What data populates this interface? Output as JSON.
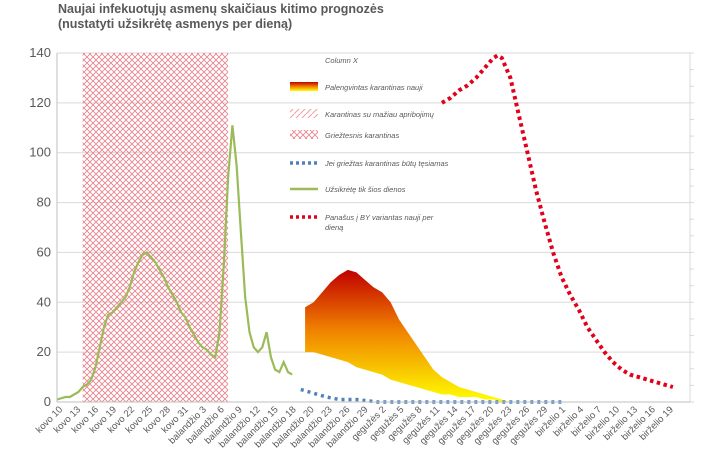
{
  "title_line1": "Naujai infekuotųjų asmenų skaičiaus kitimo prognozės",
  "title_line2": "(nustatyti užsikrėtę asmenys per dieną)",
  "chart_data": {
    "type": "line",
    "title": "Naujai infekuotųjų asmenų skaičiaus kitimo prognozės (nustatyti užsikrėtę asmenys per dieną)",
    "ylim": [
      0,
      140
    ],
    "yticks": [
      0,
      20,
      40,
      60,
      80,
      100,
      120,
      140
    ],
    "grid": true,
    "x_labels": [
      "kovo 10",
      "kovo 13",
      "kovo 16",
      "kovo 19",
      "kovo 22",
      "kovo 25",
      "kovo 28",
      "kovo 31",
      "balandžio 3",
      "balandžio 6",
      "balandžio 9",
      "balandžio 12",
      "balandžio 15",
      "balandžio 18",
      "balandžio 20",
      "balandžio 23",
      "balandžio 26",
      "balandžio 29",
      "gegužės 2",
      "gegužės 5",
      "gegužės 8",
      "gegužės 11",
      "gegužės 14",
      "gegužės 17",
      "gegužės 20",
      "gegužės 23",
      "gegužės 26",
      "gegužės 29",
      "birželio 1",
      "birželio 4",
      "birželio 7",
      "birželio 10",
      "birželio 13",
      "birželio 16",
      "birželio 19"
    ],
    "legend_placement": "inside-top",
    "legend": [
      {
        "label": "Column X",
        "kind": "none"
      },
      {
        "label": "Palengvintas karantinas nauji",
        "kind": "gradient"
      },
      {
        "label": "Karantinas su mažiau apribojimų",
        "kind": "hatch-light"
      },
      {
        "label": "Griežtesnis karantinas",
        "kind": "hatch-red"
      },
      {
        "label": "Jei griežtas karantinas būtų tęsiamas",
        "kind": "dotted-blue"
      },
      {
        "label": "Užsikrėtę tik šios dienos",
        "kind": "line-green"
      },
      {
        "label": "Panašus į BY variantas nauji per dieną",
        "kind": "dotted-red"
      }
    ],
    "strict_quarantine_range": {
      "x_start": 6,
      "x_end": 40
    },
    "series": [
      {
        "name": "Užsikrėtę tik šios dienos",
        "color": "#9bbb59",
        "points": [
          [
            0,
            1
          ],
          [
            2,
            2
          ],
          [
            3,
            2
          ],
          [
            4,
            3
          ],
          [
            5,
            4
          ],
          [
            6,
            6
          ],
          [
            7,
            7
          ],
          [
            8,
            9
          ],
          [
            9,
            14
          ],
          [
            10,
            22
          ],
          [
            11,
            30
          ],
          [
            12,
            35
          ],
          [
            13,
            36
          ],
          [
            14,
            38
          ],
          [
            15,
            40
          ],
          [
            16,
            42
          ],
          [
            17,
            46
          ],
          [
            18,
            52
          ],
          [
            19,
            56
          ],
          [
            20,
            59
          ],
          [
            21,
            60
          ],
          [
            22,
            58
          ],
          [
            23,
            56
          ],
          [
            24,
            53
          ],
          [
            25,
            50
          ],
          [
            26,
            46
          ],
          [
            27,
            43
          ],
          [
            28,
            40
          ],
          [
            29,
            36
          ],
          [
            30,
            34
          ],
          [
            31,
            30
          ],
          [
            32,
            27
          ],
          [
            33,
            24
          ],
          [
            34,
            22
          ],
          [
            35,
            21
          ],
          [
            36,
            19
          ],
          [
            37,
            18
          ],
          [
            38,
            28
          ],
          [
            39,
            55
          ],
          [
            40,
            90
          ],
          [
            41,
            111
          ],
          [
            42,
            95
          ],
          [
            43,
            68
          ],
          [
            44,
            42
          ],
          [
            45,
            28
          ],
          [
            46,
            22
          ],
          [
            47,
            20
          ],
          [
            48,
            22
          ],
          [
            49,
            28
          ],
          [
            50,
            18
          ],
          [
            51,
            13
          ],
          [
            52,
            12
          ],
          [
            53,
            16
          ],
          [
            54,
            12
          ],
          [
            55,
            11
          ]
        ]
      },
      {
        "name": "Jei griežtas karantinas būtų tęsiamas",
        "color": "#4f81bd",
        "points": [
          [
            57,
            5
          ],
          [
            59,
            4
          ],
          [
            61,
            3
          ],
          [
            63,
            2
          ],
          [
            66,
            1
          ],
          [
            70,
            1
          ],
          [
            75,
            0
          ],
          [
            80,
            0
          ],
          [
            90,
            0
          ],
          [
            100,
            0
          ],
          [
            110,
            0
          ],
          [
            118,
            0
          ]
        ]
      },
      {
        "name": "Panašus į BY variantas nauji per dieną",
        "color": "#e3001b",
        "points": [
          [
            90,
            120
          ],
          [
            92,
            122
          ],
          [
            94,
            125
          ],
          [
            96,
            127
          ],
          [
            98,
            130
          ],
          [
            100,
            134
          ],
          [
            102,
            138
          ],
          [
            103,
            139
          ],
          [
            104,
            138
          ],
          [
            106,
            130
          ],
          [
            108,
            115
          ],
          [
            110,
            100
          ],
          [
            112,
            85
          ],
          [
            114,
            72
          ],
          [
            116,
            60
          ],
          [
            118,
            50
          ],
          [
            120,
            43
          ],
          [
            122,
            37
          ],
          [
            124,
            30
          ],
          [
            126,
            25
          ],
          [
            128,
            20
          ],
          [
            130,
            16
          ],
          [
            132,
            13
          ],
          [
            134,
            11
          ],
          [
            136,
            10
          ],
          [
            138,
            9
          ],
          [
            140,
            8
          ],
          [
            142,
            7
          ],
          [
            144,
            6
          ]
        ]
      },
      {
        "name": "Palengvintas karantinas nauji",
        "kind": "area",
        "upper": [
          [
            58,
            38
          ],
          [
            60,
            40
          ],
          [
            62,
            44
          ],
          [
            64,
            48
          ],
          [
            66,
            51
          ],
          [
            68,
            53
          ],
          [
            70,
            52
          ],
          [
            72,
            49
          ],
          [
            74,
            46
          ],
          [
            76,
            44
          ],
          [
            78,
            40
          ],
          [
            80,
            33
          ],
          [
            82,
            28
          ],
          [
            84,
            23
          ],
          [
            86,
            18
          ],
          [
            88,
            13
          ],
          [
            90,
            10
          ],
          [
            92,
            8
          ],
          [
            94,
            6
          ],
          [
            96,
            5
          ],
          [
            98,
            4
          ],
          [
            100,
            3
          ],
          [
            102,
            2
          ],
          [
            104,
            1
          ],
          [
            106,
            0
          ]
        ],
        "lower": [
          [
            58,
            20
          ],
          [
            60,
            20
          ],
          [
            62,
            19
          ],
          [
            64,
            18
          ],
          [
            66,
            17
          ],
          [
            68,
            16
          ],
          [
            70,
            14
          ],
          [
            72,
            13
          ],
          [
            74,
            12
          ],
          [
            76,
            11
          ],
          [
            78,
            9
          ],
          [
            80,
            8
          ],
          [
            82,
            7
          ],
          [
            84,
            6
          ],
          [
            86,
            5
          ],
          [
            88,
            4
          ],
          [
            90,
            3
          ],
          [
            92,
            3
          ],
          [
            94,
            2
          ],
          [
            96,
            2
          ],
          [
            98,
            2
          ],
          [
            100,
            1
          ],
          [
            102,
            1
          ],
          [
            104,
            0
          ],
          [
            106,
            0
          ]
        ]
      }
    ]
  }
}
